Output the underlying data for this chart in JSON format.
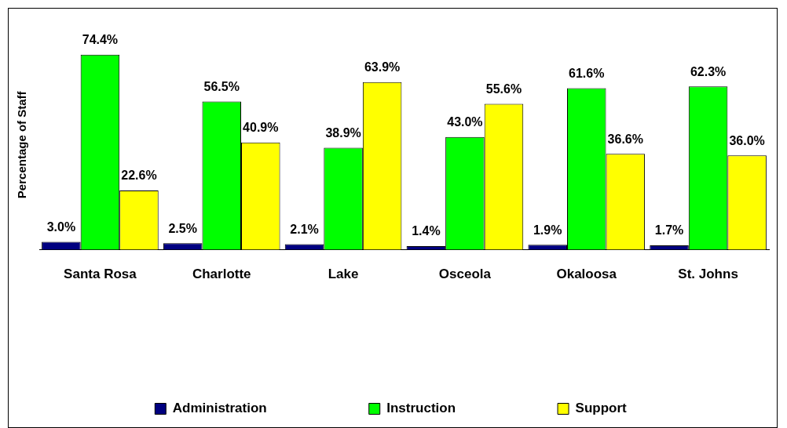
{
  "chart_data": {
    "type": "bar",
    "ylabel": "Percentage of Staff",
    "categories": [
      "Santa Rosa",
      "Charlotte",
      "Lake",
      "Osceola",
      "Okaloosa",
      "St. Johns"
    ],
    "series": [
      {
        "name": "Administration",
        "color": "#000080",
        "values": [
          3.0,
          2.5,
          2.1,
          1.4,
          1.9,
          1.7
        ],
        "value_labels": [
          "3.0%",
          "2.5%",
          "2.1%",
          "1.4%",
          "1.9%",
          "1.7%"
        ]
      },
      {
        "name": "Instruction",
        "color": "#00ff00",
        "values": [
          74.4,
          56.5,
          38.9,
          43.0,
          61.6,
          62.3
        ],
        "value_labels": [
          "74.4%",
          "56.5%",
          "38.9%",
          "43.0%",
          "61.6%",
          "62.3%"
        ]
      },
      {
        "name": "Support",
        "color": "#ffff00",
        "values": [
          22.6,
          40.9,
          63.9,
          55.6,
          36.6,
          36.0
        ],
        "value_labels": [
          "22.6%",
          "40.9%",
          "63.9%",
          "55.6%",
          "36.6%",
          "36.0%"
        ]
      }
    ],
    "legend": "bottom",
    "grid": false
  }
}
